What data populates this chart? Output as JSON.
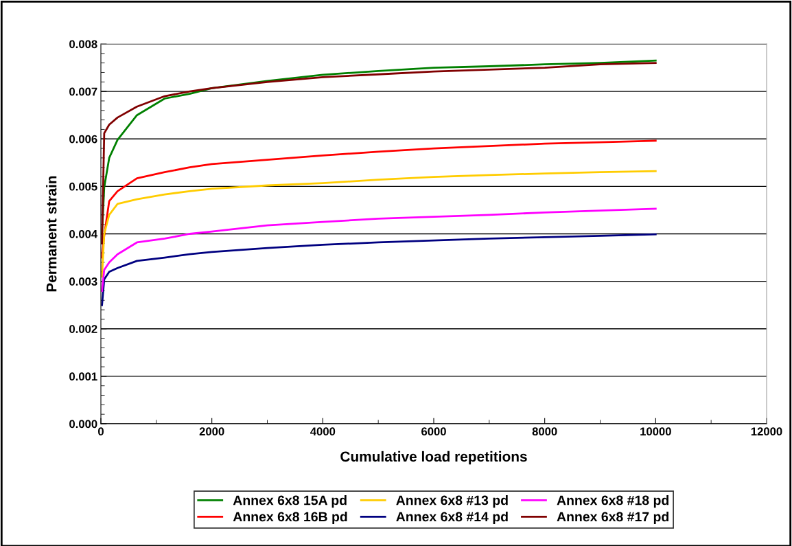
{
  "chart_data": {
    "type": "line",
    "xlabel": "Cumulative load repetitions",
    "ylabel": "Permanent strain",
    "xlim": [
      0,
      12000
    ],
    "xticks": [
      0,
      2000,
      4000,
      6000,
      8000,
      10000,
      12000
    ],
    "ylim": [
      0,
      0.008
    ],
    "yticks": [
      {
        "value": 0,
        "label": "0.000"
      },
      {
        "value": 0.001,
        "label": "0.001"
      },
      {
        "value": 0.002,
        "label": "0.002"
      },
      {
        "value": 0.003,
        "label": "0.003"
      },
      {
        "value": 0.004,
        "label": "0.004"
      },
      {
        "value": 0.005,
        "label": "0.005"
      },
      {
        "value": 0.006,
        "label": "0.006"
      },
      {
        "value": 0.007,
        "label": "0.007"
      },
      {
        "value": 0.008,
        "label": "0.008"
      }
    ],
    "grid": "y",
    "legend": "bottom",
    "marker": "none",
    "line_style": "solid",
    "x": [
      20,
      60,
      150,
      300,
      650,
      1150,
      1600,
      2000,
      3000,
      4000,
      5000,
      6000,
      7000,
      8000,
      9000,
      10000
    ],
    "series": [
      {
        "name": "Annex 6x8 15A pd",
        "color": "#008000",
        "values": [
          0.004,
          0.00498,
          0.0056,
          0.00598,
          0.0065,
          0.00685,
          0.00695,
          0.00707,
          0.00722,
          0.00735,
          0.00743,
          0.0075,
          0.00753,
          0.00757,
          0.0076,
          0.00765
        ]
      },
      {
        "name": "Annex 6x8 16B pd",
        "color": "#ff0000",
        "values": [
          0.0035,
          0.00396,
          0.00469,
          0.0049,
          0.00517,
          0.0053,
          0.0054,
          0.00547,
          0.00556,
          0.00565,
          0.00573,
          0.0058,
          0.00585,
          0.0059,
          0.00593,
          0.00596
        ]
      },
      {
        "name": "Annex 6x8 #13 pd",
        "color": "#ffcc00",
        "values": [
          0.0031,
          0.004,
          0.0044,
          0.00463,
          0.00473,
          0.00483,
          0.0049,
          0.00495,
          0.00502,
          0.00507,
          0.00514,
          0.0052,
          0.00524,
          0.00527,
          0.0053,
          0.00532
        ]
      },
      {
        "name": "Annex 6x8 #14 pd",
        "color": "#000080",
        "values": [
          0.0025,
          0.00304,
          0.0032,
          0.00328,
          0.00343,
          0.0035,
          0.00357,
          0.00362,
          0.0037,
          0.00377,
          0.00382,
          0.00386,
          0.0039,
          0.00393,
          0.00396,
          0.00399
        ]
      },
      {
        "name": "Annex 6x8 #18 pd",
        "color": "#ff00ff",
        "values": [
          0.0028,
          0.00324,
          0.0034,
          0.00357,
          0.00382,
          0.0039,
          0.004,
          0.00405,
          0.00418,
          0.00425,
          0.00432,
          0.00436,
          0.0044,
          0.00445,
          0.00449,
          0.00453
        ]
      },
      {
        "name": "Annex 6x8 #17 pd",
        "color": "#800000",
        "values": [
          0.0038,
          0.00612,
          0.0063,
          0.00645,
          0.00668,
          0.0069,
          0.007,
          0.00707,
          0.0072,
          0.0073,
          0.00736,
          0.00742,
          0.00746,
          0.0075,
          0.00757,
          0.0076
        ]
      }
    ]
  }
}
